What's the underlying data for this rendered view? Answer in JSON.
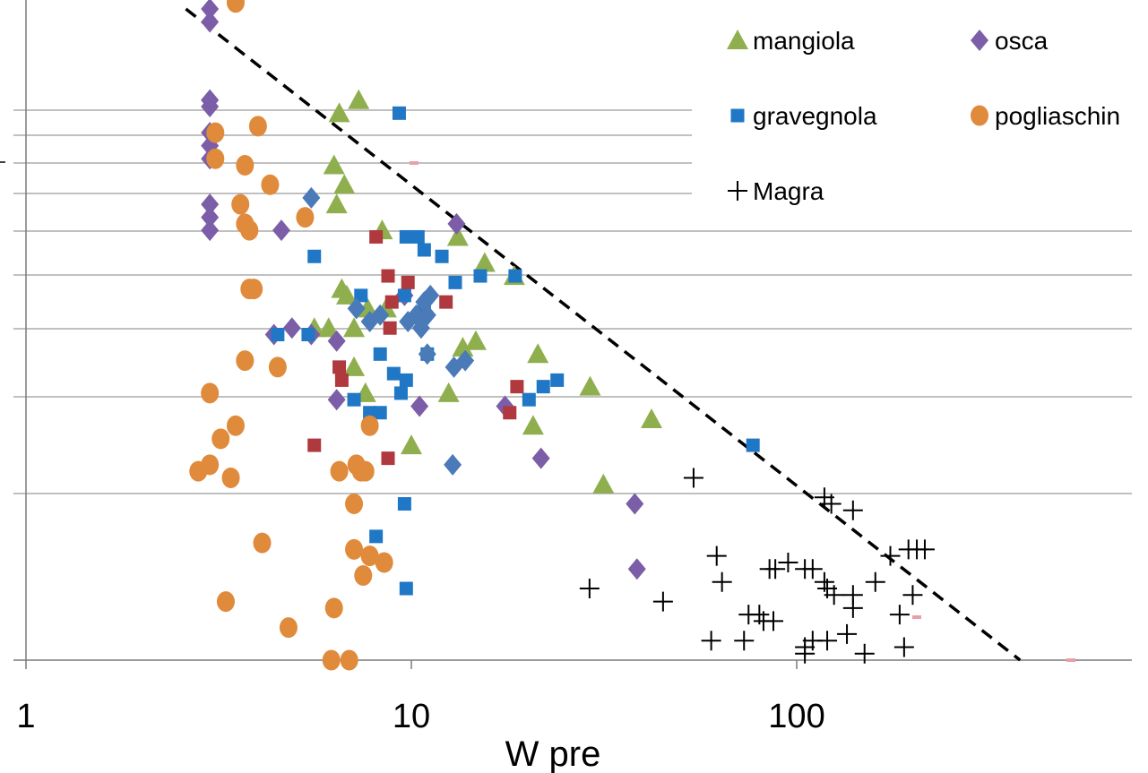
{
  "chart_data": {
    "type": "scatter",
    "xlabel": "W pre",
    "xscale": "log",
    "xlim": [
      1,
      700
    ],
    "x_ticks": [
      "1",
      "10",
      "100"
    ],
    "grid": "horizontal",
    "legend_position": "top-right",
    "colors": {
      "mangiola": "#8faf4f",
      "osca": "#7b5ea7",
      "gravegnola": "#1f77c6",
      "pogliaschina": "#e08a3c",
      "Magra": "#000000",
      "red_series": "#b0393f",
      "steelblue_series": "#4a7ab7",
      "trend_line": "#000000"
    },
    "legend": [
      {
        "key": "mangiola",
        "label": "mangiola",
        "marker": "triangle"
      },
      {
        "key": "osca",
        "label": "osca",
        "marker": "diamond"
      },
      {
        "key": "gravegnola",
        "label": "gravegnola",
        "marker": "square"
      },
      {
        "key": "pogliaschina",
        "label": "pogliaschin",
        "marker": "circle"
      },
      {
        "key": "Magra",
        "label": "Magra",
        "marker": "plus"
      }
    ],
    "trend_line": {
      "style": "dashed",
      "points": [
        [
          2.6,
          1.0
        ],
        [
          380,
          0.0
        ]
      ]
    },
    "series": [
      {
        "key": "mangiola",
        "marker": "triangle",
        "points": [
          [
            7.3,
            0.86
          ],
          [
            6.5,
            0.84
          ],
          [
            6.3,
            0.76
          ],
          [
            6.7,
            0.73
          ],
          [
            6.4,
            0.7
          ],
          [
            8.4,
            0.66
          ],
          [
            13.2,
            0.65
          ],
          [
            15.5,
            0.61
          ],
          [
            18.5,
            0.59
          ],
          [
            6.6,
            0.57
          ],
          [
            6.8,
            0.56
          ],
          [
            7.7,
            0.54
          ],
          [
            8.6,
            0.54
          ],
          [
            6.1,
            0.51
          ],
          [
            5.6,
            0.51
          ],
          [
            7.1,
            0.51
          ],
          [
            14.7,
            0.49
          ],
          [
            13.6,
            0.48
          ],
          [
            21.3,
            0.47
          ],
          [
            7.1,
            0.45
          ],
          [
            29.1,
            0.42
          ],
          [
            12.5,
            0.41
          ],
          [
            7.6,
            0.41
          ],
          [
            20.7,
            0.36
          ],
          [
            42.0,
            0.37
          ],
          [
            10.0,
            0.33
          ],
          [
            31.5,
            0.27
          ]
        ]
      },
      {
        "key": "osca",
        "marker": "diamond",
        "points": [
          [
            3.0,
            1.0
          ],
          [
            3.0,
            0.98
          ],
          [
            3.0,
            0.86
          ],
          [
            3.0,
            0.86
          ],
          [
            3.0,
            0.85
          ],
          [
            3.0,
            0.81
          ],
          [
            3.0,
            0.79
          ],
          [
            3.0,
            0.77
          ],
          [
            3.0,
            0.7
          ],
          [
            3.0,
            0.68
          ],
          [
            3.0,
            0.66
          ],
          [
            4.6,
            0.66
          ],
          [
            4.4,
            0.5
          ],
          [
            4.9,
            0.51
          ],
          [
            5.5,
            0.5
          ],
          [
            6.4,
            0.49
          ],
          [
            6.4,
            0.4
          ],
          [
            10.5,
            0.39
          ],
          [
            17.5,
            0.39
          ],
          [
            21.7,
            0.31
          ],
          [
            38.0,
            0.24
          ],
          [
            38.5,
            0.14
          ],
          [
            9.6,
            0.56
          ],
          [
            13.1,
            0.67
          ]
        ]
      },
      {
        "key": "gravegnola",
        "marker": "square",
        "points": [
          [
            9.9,
            1.03
          ],
          [
            9.3,
            0.84
          ],
          [
            9.7,
            0.65
          ],
          [
            10.4,
            0.65
          ],
          [
            10.8,
            0.63
          ],
          [
            12.0,
            0.62
          ],
          [
            5.6,
            0.62
          ],
          [
            18.6,
            0.59
          ],
          [
            15.1,
            0.59
          ],
          [
            13.0,
            0.58
          ],
          [
            7.4,
            0.56
          ],
          [
            9.6,
            0.56
          ],
          [
            10.8,
            0.54
          ],
          [
            4.5,
            0.5
          ],
          [
            5.4,
            0.5
          ],
          [
            11.0,
            0.47
          ],
          [
            8.3,
            0.47
          ],
          [
            9.0,
            0.44
          ],
          [
            9.7,
            0.43
          ],
          [
            9.4,
            0.41
          ],
          [
            22.0,
            0.42
          ],
          [
            23.9,
            0.43
          ],
          [
            20.2,
            0.4
          ],
          [
            7.1,
            0.4
          ],
          [
            7.8,
            0.38
          ],
          [
            8.3,
            0.38
          ],
          [
            77.0,
            0.33
          ],
          [
            9.6,
            0.24
          ],
          [
            8.1,
            0.19
          ],
          [
            9.7,
            0.11
          ]
        ]
      },
      {
        "key": "pogliaschina",
        "marker": "circle",
        "points": [
          [
            3.5,
            1.01
          ],
          [
            4.0,
            0.82
          ],
          [
            3.1,
            0.81
          ],
          [
            3.1,
            0.77
          ],
          [
            3.7,
            0.76
          ],
          [
            4.3,
            0.73
          ],
          [
            3.6,
            0.7
          ],
          [
            5.3,
            0.68
          ],
          [
            3.7,
            0.67
          ],
          [
            3.8,
            0.66
          ],
          [
            3.9,
            0.57
          ],
          [
            3.8,
            0.57
          ],
          [
            3.7,
            0.46
          ],
          [
            4.5,
            0.45
          ],
          [
            3.0,
            0.41
          ],
          [
            3.5,
            0.36
          ],
          [
            3.2,
            0.34
          ],
          [
            2.8,
            0.29
          ],
          [
            3.0,
            0.3
          ],
          [
            3.4,
            0.28
          ],
          [
            6.5,
            0.29
          ],
          [
            7.2,
            0.3
          ],
          [
            7.4,
            0.29
          ],
          [
            7.6,
            0.29
          ],
          [
            7.8,
            0.36
          ],
          [
            7.1,
            0.24
          ],
          [
            4.1,
            0.18
          ],
          [
            7.1,
            0.17
          ],
          [
            7.8,
            0.16
          ],
          [
            8.5,
            0.15
          ],
          [
            7.5,
            0.13
          ],
          [
            3.3,
            0.09
          ],
          [
            6.3,
            0.08
          ],
          [
            4.8,
            0.05
          ],
          [
            6.2,
            0.0
          ],
          [
            6.9,
            0.0
          ]
        ]
      },
      {
        "key": "Magra",
        "marker": "plus",
        "points": [
          [
            54,
            0.28
          ],
          [
            118,
            0.25
          ],
          [
            123,
            0.24
          ],
          [
            140,
            0.23
          ],
          [
            62,
            0.16
          ],
          [
            64,
            0.12
          ],
          [
            29,
            0.11
          ],
          [
            45,
            0.09
          ],
          [
            85,
            0.14
          ],
          [
            88,
            0.14
          ],
          [
            95,
            0.15
          ],
          [
            105,
            0.14
          ],
          [
            110,
            0.14
          ],
          [
            118,
            0.12
          ],
          [
            120,
            0.11
          ],
          [
            125,
            0.1
          ],
          [
            140,
            0.1
          ],
          [
            140,
            0.08
          ],
          [
            160,
            0.12
          ],
          [
            175,
            0.16
          ],
          [
            195,
            0.17
          ],
          [
            205,
            0.17
          ],
          [
            215,
            0.17
          ],
          [
            200,
            0.1
          ],
          [
            185,
            0.07
          ],
          [
            75,
            0.07
          ],
          [
            80,
            0.07
          ],
          [
            82,
            0.06
          ],
          [
            87,
            0.06
          ],
          [
            60,
            0.03
          ],
          [
            73,
            0.03
          ],
          [
            105,
            0.02
          ],
          [
            110,
            0.03
          ],
          [
            120,
            0.03
          ],
          [
            135,
            0.04
          ],
          [
            150,
            0.01
          ],
          [
            190,
            0.02
          ],
          [
            105,
            0.01
          ]
        ]
      },
      {
        "key": "red_series",
        "marker": "square",
        "points": [
          [
            8.1,
            0.65
          ],
          [
            8.7,
            0.59
          ],
          [
            9.8,
            0.58
          ],
          [
            8.9,
            0.55
          ],
          [
            12.3,
            0.55
          ],
          [
            8.8,
            0.51
          ],
          [
            6.5,
            0.45
          ],
          [
            6.6,
            0.43
          ],
          [
            18.8,
            0.42
          ],
          [
            18.0,
            0.38
          ],
          [
            5.6,
            0.33
          ],
          [
            8.7,
            0.31
          ]
        ]
      },
      {
        "key": "steelblue_series",
        "marker": "diamond",
        "points": [
          [
            5.5,
            0.71
          ],
          [
            7.2,
            0.54
          ],
          [
            7.8,
            0.52
          ],
          [
            9.8,
            0.52
          ],
          [
            10.8,
            0.55
          ],
          [
            11.2,
            0.56
          ],
          [
            11.0,
            0.53
          ],
          [
            10.6,
            0.51
          ],
          [
            11.0,
            0.47
          ],
          [
            12.9,
            0.45
          ],
          [
            13.8,
            0.46
          ],
          [
            12.8,
            0.3
          ],
          [
            8.3,
            0.53
          ],
          [
            10.3,
            0.53
          ]
        ]
      }
    ]
  }
}
